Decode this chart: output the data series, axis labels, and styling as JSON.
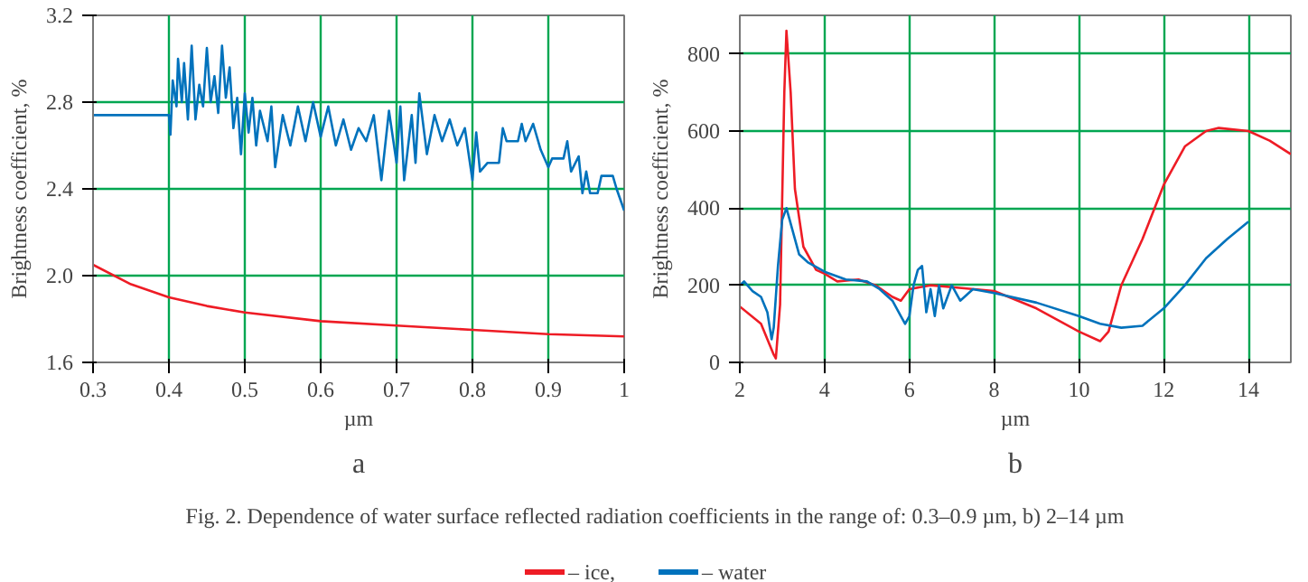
{
  "chart_data": [
    {
      "type": "line",
      "title": "a",
      "xlabel": "µm",
      "ylabel": "Brightness coefficient, %",
      "xlim": [
        0.3,
        1
      ],
      "ylim": [
        1.6,
        3.2
      ],
      "xticks": [
        0.3,
        0.4,
        0.5,
        0.6,
        0.7,
        0.8,
        0.9,
        1
      ],
      "yticks": [
        1.6,
        {
          "value": 2.0,
          "label": "2.0"
        },
        2.4,
        2.8,
        3.2
      ],
      "grid": true,
      "legend": "bottom",
      "annotations": [
        "Fig. 2. Dependence of water surface reflected radiation coefficients in the range of: 0.3–0.9 µm, b) 2–14 µm"
      ],
      "series": [
        {
          "name": "– ice,",
          "color": "#ee1c25",
          "x": [
            0.3,
            0.35,
            0.4,
            0.45,
            0.5,
            0.6,
            0.7,
            0.8,
            0.9,
            1.0
          ],
          "values": [
            2.05,
            1.96,
            1.9,
            1.86,
            1.83,
            1.79,
            1.77,
            1.75,
            1.73,
            1.72
          ]
        },
        {
          "name": "– water",
          "color": "#0072bc",
          "x": [
            0.3,
            0.4,
            0.402,
            0.405,
            0.41,
            0.412,
            0.417,
            0.42,
            0.425,
            0.43,
            0.435,
            0.44,
            0.445,
            0.45,
            0.455,
            0.46,
            0.465,
            0.47,
            0.475,
            0.48,
            0.485,
            0.49,
            0.495,
            0.5,
            0.505,
            0.51,
            0.515,
            0.52,
            0.53,
            0.535,
            0.54,
            0.55,
            0.56,
            0.57,
            0.58,
            0.59,
            0.6,
            0.61,
            0.62,
            0.63,
            0.64,
            0.65,
            0.66,
            0.67,
            0.68,
            0.69,
            0.7,
            0.705,
            0.71,
            0.72,
            0.725,
            0.73,
            0.74,
            0.75,
            0.76,
            0.77,
            0.78,
            0.79,
            0.8,
            0.805,
            0.81,
            0.82,
            0.835,
            0.84,
            0.845,
            0.86,
            0.865,
            0.87,
            0.88,
            0.89,
            0.9,
            0.905,
            0.92,
            0.925,
            0.93,
            0.94,
            0.945,
            0.95,
            0.955,
            0.965,
            0.97,
            0.985,
            0.99,
            1.0
          ],
          "values": [
            2.74,
            2.74,
            2.65,
            2.9,
            2.78,
            3.0,
            2.8,
            2.98,
            2.72,
            3.06,
            2.72,
            2.88,
            2.78,
            3.05,
            2.8,
            2.92,
            2.75,
            3.06,
            2.82,
            2.96,
            2.68,
            2.82,
            2.56,
            2.84,
            2.66,
            2.82,
            2.6,
            2.76,
            2.62,
            2.78,
            2.5,
            2.74,
            2.6,
            2.78,
            2.62,
            2.8,
            2.64,
            2.78,
            2.6,
            2.72,
            2.58,
            2.68,
            2.62,
            2.74,
            2.44,
            2.76,
            2.52,
            2.78,
            2.44,
            2.74,
            2.52,
            2.84,
            2.56,
            2.74,
            2.62,
            2.72,
            2.6,
            2.68,
            2.44,
            2.66,
            2.48,
            2.52,
            2.52,
            2.68,
            2.62,
            2.62,
            2.7,
            2.62,
            2.7,
            2.58,
            2.5,
            2.54,
            2.54,
            2.62,
            2.48,
            2.55,
            2.38,
            2.48,
            2.38,
            2.38,
            2.46,
            2.46,
            2.4,
            2.3
          ]
        }
      ]
    },
    {
      "type": "line",
      "title": "b",
      "xlabel": "µm",
      "ylabel": "Brightness coefficient, %",
      "xlim": [
        2,
        15
      ],
      "ylim": [
        0,
        900
      ],
      "xticks": [
        2,
        4,
        6,
        8,
        10,
        12,
        14
      ],
      "yticks": [
        0,
        200,
        400,
        600,
        800
      ],
      "grid": true,
      "series": [
        {
          "color": "#ee1c25",
          "x": [
            2,
            2.5,
            2.8,
            2.85,
            2.95,
            3.05,
            3.1,
            3.2,
            3.3,
            3.5,
            3.8,
            4.0,
            4.3,
            4.8,
            5.2,
            5.6,
            5.8,
            6,
            6.5,
            7,
            8,
            9,
            10,
            10.5,
            10.7,
            11,
            11.5,
            12,
            12.5,
            13,
            13.3,
            14,
            14.5,
            15
          ],
          "values": [
            145,
            100,
            20,
            10,
            150,
            700,
            860,
            700,
            450,
            300,
            240,
            230,
            210,
            215,
            200,
            170,
            160,
            190,
            200,
            195,
            185,
            140,
            80,
            55,
            80,
            200,
            320,
            460,
            560,
            600,
            608,
            600,
            575,
            540
          ]
        },
        {
          "color": "#0072bc",
          "x": [
            2,
            2.1,
            2.3,
            2.5,
            2.65,
            2.75,
            2.8,
            2.9,
            3.0,
            3.1,
            3.2,
            3.4,
            3.6,
            4.0,
            4.5,
            5.0,
            5.3,
            5.6,
            5.8,
            5.9,
            6.0,
            6.1,
            6.2,
            6.3,
            6.4,
            6.5,
            6.6,
            6.7,
            6.8,
            7.0,
            7.2,
            7.5,
            8,
            9,
            10,
            10.5,
            11,
            11.5,
            12,
            12.5,
            13,
            13.5,
            14
          ],
          "values": [
            200,
            210,
            185,
            170,
            130,
            60,
            90,
            250,
            370,
            400,
            360,
            280,
            260,
            235,
            215,
            210,
            190,
            160,
            120,
            100,
            120,
            200,
            240,
            250,
            130,
            190,
            120,
            200,
            140,
            200,
            160,
            190,
            180,
            155,
            120,
            100,
            90,
            95,
            140,
            200,
            270,
            320,
            365
          ]
        }
      ]
    }
  ]
}
